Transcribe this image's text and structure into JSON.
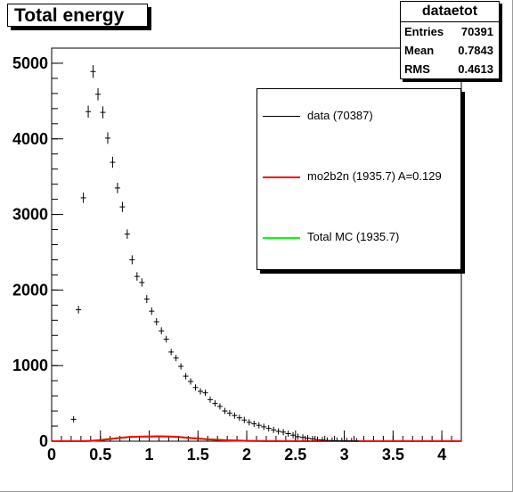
{
  "chart_data": {
    "type": "scatter",
    "title": "Total energy",
    "stats": {
      "name": "dataetot",
      "rows": [
        {
          "label": "Entries",
          "value": "70391"
        },
        {
          "label": "Mean",
          "value": "0.7843"
        },
        {
          "label": "RMS",
          "value": "0.4613"
        }
      ]
    },
    "xlim": [
      0,
      4.2
    ],
    "ylim": [
      0,
      5200
    ],
    "x_ticks": [
      "0",
      "0.5",
      "1",
      "1.5",
      "2",
      "2.5",
      "3",
      "3.5",
      "4"
    ],
    "y_ticks": [
      "0",
      "1000",
      "2000",
      "3000",
      "4000",
      "5000"
    ],
    "legend": {
      "position": "top-right",
      "entries": [
        {
          "label": "data (70387)",
          "color": "#000000"
        },
        {
          "label": "mo2b2n (1935.7) A=0.129",
          "color": "#ff0000"
        },
        {
          "label": "Total MC (1935.7)",
          "color": "#00ff00"
        }
      ]
    },
    "series": [
      {
        "name": "data (70387)",
        "color": "#000000",
        "x": [
          0.225,
          0.275,
          0.325,
          0.375,
          0.425,
          0.475,
          0.525,
          0.575,
          0.625,
          0.675,
          0.725,
          0.775,
          0.825,
          0.875,
          0.925,
          0.975,
          1.025,
          1.075,
          1.125,
          1.175,
          1.225,
          1.275,
          1.325,
          1.375,
          1.425,
          1.475,
          1.525,
          1.575,
          1.625,
          1.675,
          1.725,
          1.775,
          1.825,
          1.875,
          1.925,
          1.975,
          2.025,
          2.075,
          2.125,
          2.175,
          2.225,
          2.275,
          2.325,
          2.375,
          2.425,
          2.475,
          2.525,
          2.575,
          2.625,
          2.675,
          2.725,
          2.775,
          2.825,
          2.875,
          2.925,
          2.975,
          3.025,
          3.075,
          3.125
        ],
        "y": [
          290,
          1740,
          3220,
          4360,
          4890,
          4590,
          4350,
          4010,
          3690,
          3350,
          3100,
          2740,
          2400,
          2180,
          2100,
          1880,
          1720,
          1580,
          1460,
          1350,
          1180,
          1100,
          990,
          860,
          790,
          710,
          660,
          640,
          550,
          500,
          460,
          400,
          370,
          340,
          310,
          280,
          250,
          230,
          210,
          190,
          170,
          150,
          130,
          120,
          100,
          80,
          60,
          50,
          40,
          30,
          20,
          15,
          10,
          8,
          6,
          4,
          3,
          2,
          1
        ]
      },
      {
        "name": "mo2b2n (1935.7) A=0.129",
        "color": "#ff0000",
        "x": [
          0,
          0.2,
          0.3,
          0.4,
          0.5,
          0.6,
          0.7,
          0.8,
          0.9,
          1.0,
          1.1,
          1.2,
          1.3,
          1.4,
          1.5,
          1.6,
          1.7,
          1.8,
          1.9,
          2.0,
          2.1,
          2.2,
          2.4,
          2.6,
          2.8,
          3.0,
          3.5,
          4.2
        ],
        "y": [
          0,
          0,
          0,
          5,
          15,
          30,
          45,
          55,
          60,
          62,
          65,
          62,
          55,
          45,
          35,
          25,
          18,
          12,
          8,
          5,
          3,
          1,
          0,
          0,
          0,
          0,
          0,
          0
        ]
      },
      {
        "name": "Total MC (1935.7)",
        "color": "#00ff00",
        "x": [
          0,
          0.2,
          0.3,
          0.4,
          0.5,
          0.6,
          0.7,
          0.8,
          0.9,
          1.0,
          1.1,
          1.2,
          1.3,
          1.4,
          1.5,
          1.6,
          1.7,
          1.8,
          1.9,
          2.0,
          2.1,
          2.2,
          2.4,
          2.6,
          2.8,
          3.0,
          3.5,
          4.2
        ],
        "y": [
          0,
          0,
          0,
          5,
          15,
          30,
          45,
          55,
          60,
          62,
          65,
          62,
          55,
          45,
          35,
          25,
          18,
          12,
          8,
          5,
          3,
          1,
          0,
          0,
          0,
          0,
          0,
          0
        ]
      }
    ]
  }
}
